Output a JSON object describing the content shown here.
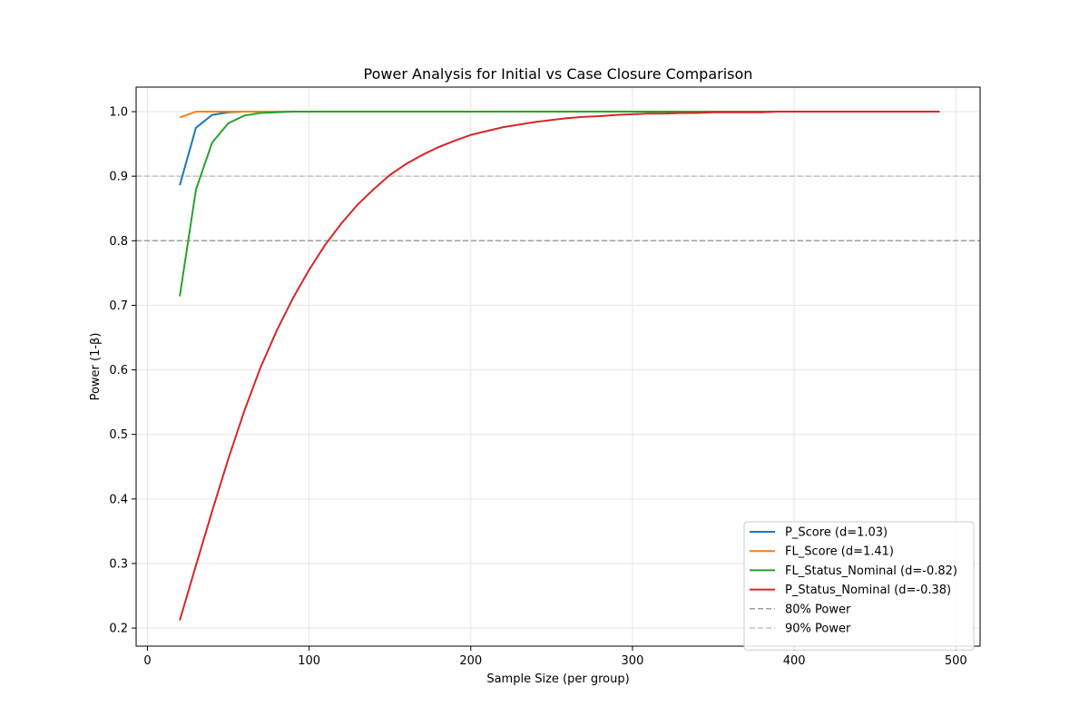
{
  "chart_data": {
    "type": "line",
    "title": "Power Analysis for Initial vs Case Closure Comparison",
    "xlabel": "Sample Size (per group)",
    "ylabel": "Power (1-β)",
    "xlim": [
      -7,
      515
    ],
    "ylim": [
      0.172,
      1.038
    ],
    "xticks": [
      0,
      100,
      200,
      300,
      400,
      500
    ],
    "yticks": [
      0.2,
      0.3,
      0.4,
      0.5,
      0.6,
      0.7,
      0.8,
      0.9,
      1.0
    ],
    "xtick_labels": [
      "0",
      "100",
      "200",
      "300",
      "400",
      "500"
    ],
    "ytick_labels": [
      "0.2",
      "0.3",
      "0.4",
      "0.5",
      "0.6",
      "0.7",
      "0.8",
      "0.9",
      "1.0"
    ],
    "grid": true,
    "legend_position": "lower-right",
    "x": [
      20,
      30,
      40,
      50,
      60,
      70,
      80,
      90,
      100,
      110,
      120,
      130,
      140,
      150,
      160,
      170,
      180,
      190,
      200,
      210,
      220,
      230,
      240,
      250,
      260,
      270,
      280,
      290,
      300,
      310,
      320,
      330,
      340,
      350,
      360,
      370,
      380,
      390,
      400,
      410,
      420,
      430,
      440,
      450,
      460,
      470,
      480,
      490
    ],
    "series": [
      {
        "name": "P_Score (d=1.03)",
        "color": "#1f77b4",
        "values": [
          0.886,
          0.975,
          0.995,
          0.999,
          1.0,
          1.0,
          1.0,
          1.0,
          1.0,
          1.0,
          1.0,
          1.0,
          1.0,
          1.0,
          1.0,
          1.0,
          1.0,
          1.0,
          1.0,
          1.0,
          1.0,
          1.0,
          1.0,
          1.0,
          1.0,
          1.0,
          1.0,
          1.0,
          1.0,
          1.0,
          1.0,
          1.0,
          1.0,
          1.0,
          1.0,
          1.0,
          1.0,
          1.0,
          1.0,
          1.0,
          1.0,
          1.0,
          1.0,
          1.0,
          1.0,
          1.0,
          1.0,
          1.0
        ]
      },
      {
        "name": "FL_Score (d=1.41)",
        "color": "#ff7f0e",
        "values": [
          0.991,
          1.0,
          1.0,
          1.0,
          1.0,
          1.0,
          1.0,
          1.0,
          1.0,
          1.0,
          1.0,
          1.0,
          1.0,
          1.0,
          1.0,
          1.0,
          1.0,
          1.0,
          1.0,
          1.0,
          1.0,
          1.0,
          1.0,
          1.0,
          1.0,
          1.0,
          1.0,
          1.0,
          1.0,
          1.0,
          1.0,
          1.0,
          1.0,
          1.0,
          1.0,
          1.0,
          1.0,
          1.0,
          1.0,
          1.0,
          1.0,
          1.0,
          1.0,
          1.0,
          1.0,
          1.0,
          1.0,
          1.0
        ]
      },
      {
        "name": "FL_Status_Nominal (d=-0.82)",
        "color": "#2ca02c",
        "values": [
          0.714,
          0.879,
          0.952,
          0.982,
          0.994,
          0.998,
          0.999,
          1.0,
          1.0,
          1.0,
          1.0,
          1.0,
          1.0,
          1.0,
          1.0,
          1.0,
          1.0,
          1.0,
          1.0,
          1.0,
          1.0,
          1.0,
          1.0,
          1.0,
          1.0,
          1.0,
          1.0,
          1.0,
          1.0,
          1.0,
          1.0,
          1.0,
          1.0,
          1.0,
          1.0,
          1.0,
          1.0,
          1.0,
          1.0,
          1.0,
          1.0,
          1.0,
          1.0,
          1.0,
          1.0,
          1.0,
          1.0,
          1.0
        ]
      },
      {
        "name": "P_Status_Nominal (d=-0.38)",
        "color": "#d62728",
        "values": [
          0.212,
          0.297,
          0.381,
          0.462,
          0.537,
          0.604,
          0.661,
          0.711,
          0.755,
          0.794,
          0.827,
          0.856,
          0.88,
          0.902,
          0.919,
          0.933,
          0.945,
          0.955,
          0.964,
          0.97,
          0.976,
          0.98,
          0.984,
          0.987,
          0.99,
          0.992,
          0.993,
          0.995,
          0.996,
          0.997,
          0.997,
          0.998,
          0.998,
          0.999,
          0.999,
          0.999,
          0.999,
          1.0,
          1.0,
          1.0,
          1.0,
          1.0,
          1.0,
          1.0,
          1.0,
          1.0,
          1.0,
          1.0
        ]
      }
    ],
    "reference_lines": [
      {
        "name": "80% Power",
        "y": 0.8,
        "color": "#a0a0a0"
      },
      {
        "name": "90% Power",
        "y": 0.9,
        "color": "#c4c4c4"
      }
    ]
  }
}
